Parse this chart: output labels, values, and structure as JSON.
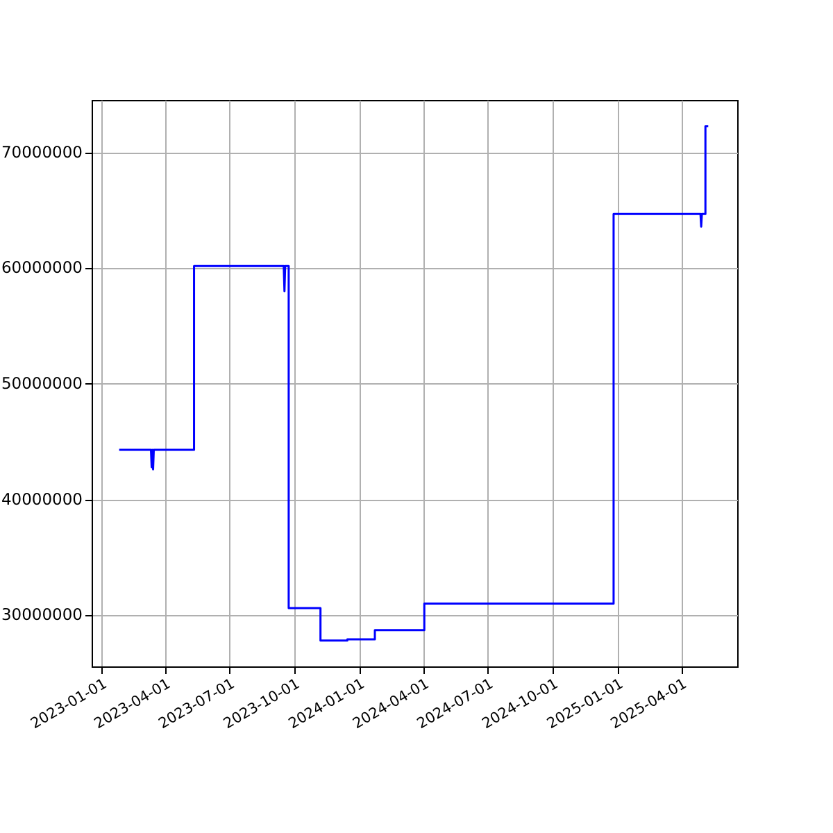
{
  "chart_data": {
    "type": "line",
    "x": [
      "2023-01-26",
      "2023-03-12",
      "2023-03-13",
      "2023-03-14",
      "2023-03-15",
      "2023-03-16",
      "2023-05-12",
      "2023-05-12",
      "2023-07-01",
      "2023-09-16",
      "2023-09-17",
      "2023-09-18",
      "2023-09-23",
      "2023-09-23",
      "2023-11-07",
      "2023-11-07",
      "2023-12-15",
      "2023-12-15",
      "2024-01-23",
      "2024-01-23",
      "2024-04-02",
      "2024-04-02",
      "2024-12-26",
      "2024-12-26",
      "2025-04-28",
      "2025-04-29",
      "2025-04-30",
      "2025-05-05",
      "2025-05-05",
      "2025-05-09"
    ],
    "series": [
      {
        "color": "#0000ff",
        "values": [
          44300000,
          44300000,
          42800000,
          44300000,
          42600000,
          44300000,
          44300000,
          60200000,
          60200000,
          60200000,
          58000000,
          60200000,
          60200000,
          30600000,
          30600000,
          27800000,
          27800000,
          27900000,
          27900000,
          28700000,
          28700000,
          31000000,
          31000000,
          64700000,
          64700000,
          63600000,
          64700000,
          64700000,
          72300000,
          72300000
        ]
      }
    ],
    "xlim": [
      "2022-12-18",
      "2025-06-19"
    ],
    "xticks": [
      "2023-01-01",
      "2023-04-01",
      "2023-07-01",
      "2023-10-01",
      "2024-01-01",
      "2024-04-01",
      "2024-07-01",
      "2024-10-01",
      "2025-01-01",
      "2025-04-01"
    ],
    "ylim": [
      25560000,
      74560000
    ],
    "yticks": [
      30000000,
      40000000,
      50000000,
      60000000,
      70000000
    ],
    "grid": true,
    "line_style": "solid"
  }
}
